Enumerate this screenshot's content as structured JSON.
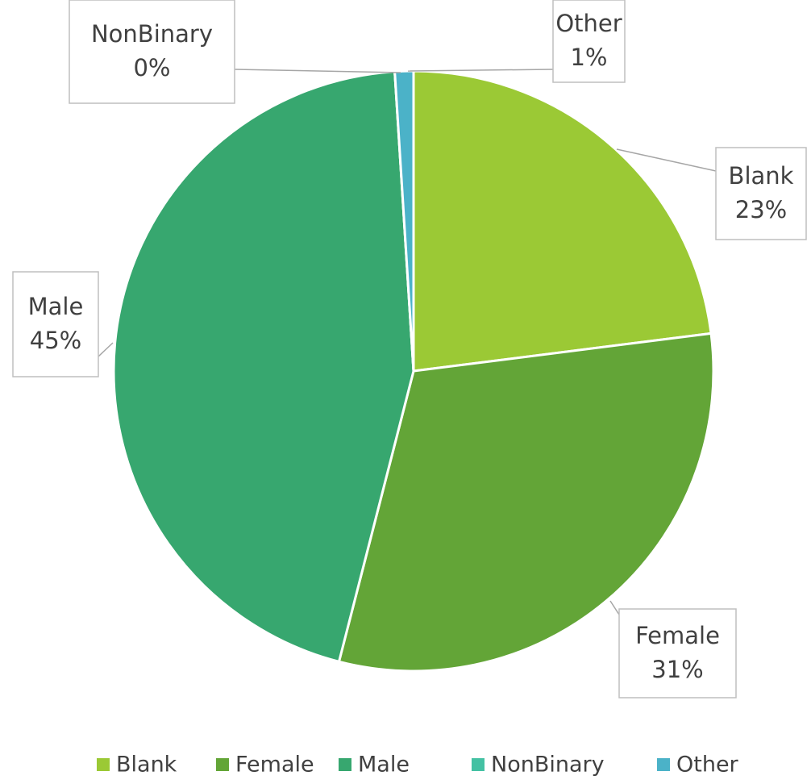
{
  "chart_data": {
    "type": "pie",
    "categories": [
      "Blank",
      "Female",
      "Male",
      "NonBinary",
      "Other"
    ],
    "values": [
      23,
      31,
      45,
      0,
      1
    ],
    "value_labels": [
      "23%",
      "31%",
      "45%",
      "0%",
      "1%"
    ],
    "colors": [
      "#9bc935",
      "#63a537",
      "#37a76f",
      "#44c1a3",
      "#4bb2c8"
    ],
    "legend": "bottom"
  }
}
